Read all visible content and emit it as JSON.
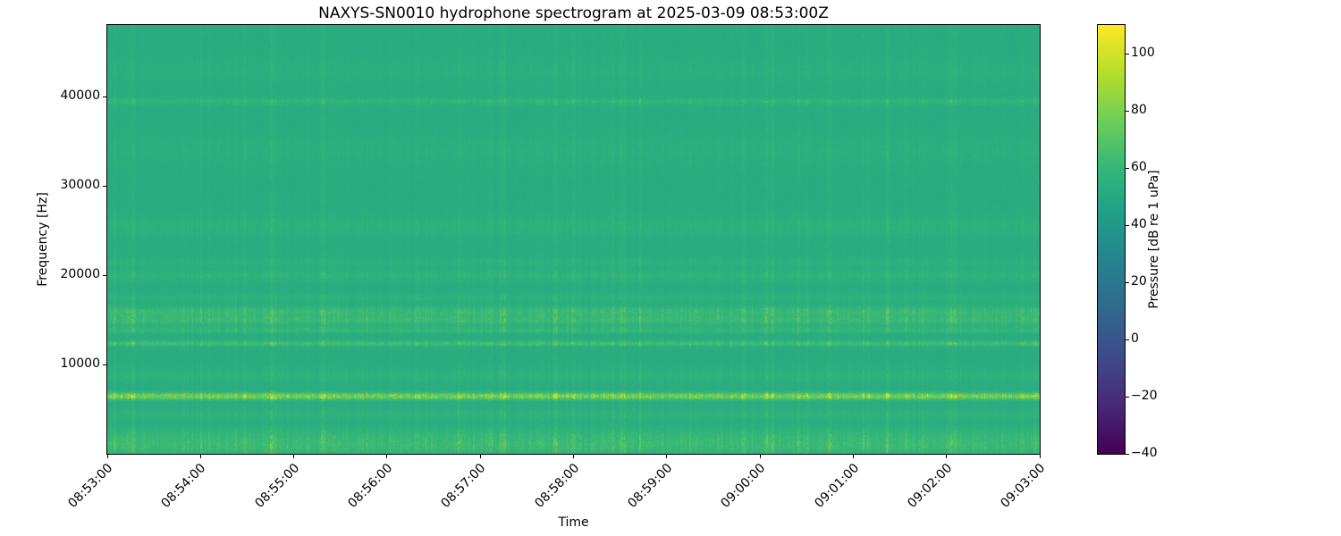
{
  "chart_data": {
    "type": "heatmap",
    "subtype": "spectrogram",
    "title": "NAXYS-SN0010 hydrophone spectrogram at 2025-03-09 08:53:00Z",
    "xlabel": "Time",
    "ylabel": "Frequency [Hz]",
    "colormap": "viridis",
    "grid": false,
    "x_tick_labels": [
      "08:53:00",
      "08:54:00",
      "08:55:00",
      "08:56:00",
      "08:57:00",
      "08:58:00",
      "08:59:00",
      "09:00:00",
      "09:01:00",
      "09:02:00",
      "09:03:00"
    ],
    "x_span_seconds": 600,
    "y_range_hz": [
      0,
      48000
    ],
    "y_ticks": [
      {
        "value": 10000,
        "label": "10000"
      },
      {
        "value": 20000,
        "label": "20000"
      },
      {
        "value": 30000,
        "label": "30000"
      },
      {
        "value": 40000,
        "label": "40000"
      }
    ],
    "colorbar": {
      "label": "Pressure [dB re 1 uPa]",
      "position": "right",
      "range_db": [
        -40,
        110
      ],
      "ticks": [
        {
          "value": 100,
          "label": "100"
        },
        {
          "value": 80,
          "label": "80"
        },
        {
          "value": 60,
          "label": "60"
        },
        {
          "value": 40,
          "label": "40"
        },
        {
          "value": 20,
          "label": "20"
        },
        {
          "value": 0,
          "label": "0"
        },
        {
          "value": -20,
          "label": "−20"
        },
        {
          "value": -40,
          "label": "−40"
        }
      ]
    },
    "background_level_db": 50,
    "noise_seed": 42,
    "features": {
      "description": "Mostly uniform teal background near 50 dB with dense broadband vertical click transients; persistent bright tonal band near 6.5 kHz reaching ~100 dB; secondary speckled bands near 12.5, 14, 15-16, 20 kHz; faint continuous line near 39.5 kHz; elevated noise strip below ~3 kHz.",
      "bands": [
        {
          "freq_hz": 900,
          "sigma_hz": 700,
          "boost_db": 15
        },
        {
          "freq_hz": 2200,
          "sigma_hz": 700,
          "boost_db": 9
        },
        {
          "freq_hz": 4500,
          "sigma_hz": 500,
          "boost_db": 6
        },
        {
          "freq_hz": 6500,
          "sigma_hz": 260,
          "boost_db": 46
        },
        {
          "freq_hz": 8800,
          "sigma_hz": 600,
          "boost_db": 6
        },
        {
          "freq_hz": 12400,
          "sigma_hz": 200,
          "boost_db": 20
        },
        {
          "freq_hz": 13900,
          "sigma_hz": 250,
          "boost_db": 12
        },
        {
          "freq_hz": 15000,
          "sigma_hz": 400,
          "boost_db": 15
        },
        {
          "freq_hz": 16000,
          "sigma_hz": 400,
          "boost_db": 15
        },
        {
          "freq_hz": 17500,
          "sigma_hz": 300,
          "boost_db": 6
        },
        {
          "freq_hz": 20000,
          "sigma_hz": 400,
          "boost_db": 8
        },
        {
          "freq_hz": 21500,
          "sigma_hz": 400,
          "boost_db": 5
        },
        {
          "freq_hz": 25500,
          "sigma_hz": 800,
          "boost_db": 5
        },
        {
          "freq_hz": 34000,
          "sigma_hz": 1000,
          "boost_db": 3.5
        },
        {
          "freq_hz": 39500,
          "sigma_hz": 250,
          "boost_db": 10
        },
        {
          "freq_hz": 43000,
          "sigma_hz": 800,
          "boost_db": 3
        }
      ]
    }
  }
}
